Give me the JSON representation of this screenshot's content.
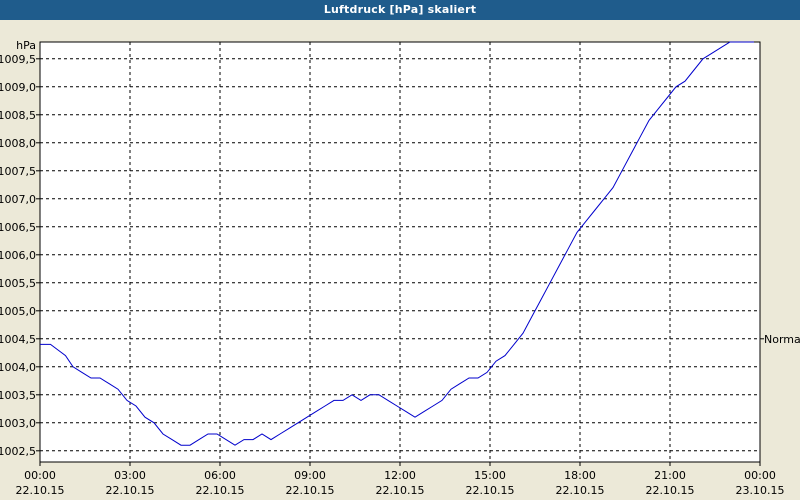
{
  "window": {
    "title": "Luftdruck [hPa] skaliert"
  },
  "colors": {
    "title_bar": "#1f5c8c",
    "plot_background": "#ffffff",
    "window_background": "#ece9d8",
    "series_line": "#0000cc",
    "grid": "#000000"
  },
  "chart_data": {
    "type": "line",
    "title": "Luftdruck [hPa] skaliert",
    "ylabel": "hPa",
    "xlabel": "",
    "grid": true,
    "grid_style": "dashed",
    "ylim": [
      1002.3,
      1009.8
    ],
    "xlim_hours": [
      0,
      24
    ],
    "y_ticks": [
      "1002,5",
      "1003,0",
      "1003,5",
      "1004,0",
      "1004,5",
      "1005,0",
      "1005,5",
      "1006,0",
      "1006,5",
      "1007,0",
      "1007,5",
      "1008,0",
      "1008,5",
      "1009,0",
      "1009,5"
    ],
    "x_ticks": [
      {
        "time": "00:00",
        "date": "22.10.15"
      },
      {
        "time": "03:00",
        "date": "22.10.15"
      },
      {
        "time": "06:00",
        "date": "22.10.15"
      },
      {
        "time": "09:00",
        "date": "22.10.15"
      },
      {
        "time": "12:00",
        "date": "22.10.15"
      },
      {
        "time": "15:00",
        "date": "22.10.15"
      },
      {
        "time": "18:00",
        "date": "22.10.15"
      },
      {
        "time": "21:00",
        "date": "22.10.15"
      },
      {
        "time": "00:00",
        "date": "23.10.15"
      }
    ],
    "annotations": [
      {
        "text": "Normal",
        "value": 1004.5
      }
    ],
    "series": [
      {
        "x": [
          0,
          0.35,
          0.6,
          0.85,
          1.1,
          1.4,
          1.7,
          2.0,
          2.3,
          2.6,
          2.9,
          3.2,
          3.5,
          3.8,
          4.1,
          4.4,
          4.7,
          5.0,
          5.3,
          5.6,
          5.9,
          6.2,
          6.5,
          6.8,
          7.1,
          7.4,
          7.7,
          8.0,
          8.3,
          8.6,
          8.9,
          9.2,
          9.5,
          9.8,
          10.1,
          10.4,
          10.7,
          11.0,
          11.3,
          11.6,
          11.9,
          12.2,
          12.5,
          12.8,
          13.1,
          13.4,
          13.7,
          14.0,
          14.3,
          14.6,
          14.9,
          15.2,
          15.5,
          15.8,
          16.1,
          16.4,
          16.7,
          17.0,
          17.3,
          17.6,
          17.9,
          18.2,
          18.5,
          18.8,
          19.1,
          19.4,
          19.7,
          20.0,
          20.3,
          20.6,
          20.9,
          21.2,
          21.5,
          21.8,
          22.1,
          22.4,
          22.7,
          23.0,
          23.3,
          23.6,
          23.8
        ],
        "y": [
          1004.4,
          1004.4,
          1004.3,
          1004.2,
          1004.0,
          1003.9,
          1003.8,
          1003.8,
          1003.7,
          1003.6,
          1003.4,
          1003.3,
          1003.1,
          1003.0,
          1002.8,
          1002.7,
          1002.6,
          1002.6,
          1002.7,
          1002.8,
          1002.8,
          1002.7,
          1002.6,
          1002.7,
          1002.7,
          1002.8,
          1002.7,
          1002.8,
          1002.9,
          1003.0,
          1003.1,
          1003.2,
          1003.3,
          1003.4,
          1003.4,
          1003.5,
          1003.4,
          1003.5,
          1003.5,
          1003.4,
          1003.3,
          1003.2,
          1003.1,
          1003.2,
          1003.3,
          1003.4,
          1003.6,
          1003.7,
          1003.8,
          1003.8,
          1003.9,
          1004.1,
          1004.2,
          1004.4,
          1004.6,
          1004.9,
          1005.2,
          1005.5,
          1005.8,
          1006.1,
          1006.4,
          1006.6,
          1006.8,
          1007.0,
          1007.2,
          1007.5,
          1007.8,
          1008.1,
          1008.4,
          1008.6,
          1008.8,
          1009.0,
          1009.1,
          1009.3,
          1009.5,
          1009.6,
          1009.7,
          1009.8,
          1009.8,
          1009.8,
          1009.8
        ]
      }
    ]
  }
}
